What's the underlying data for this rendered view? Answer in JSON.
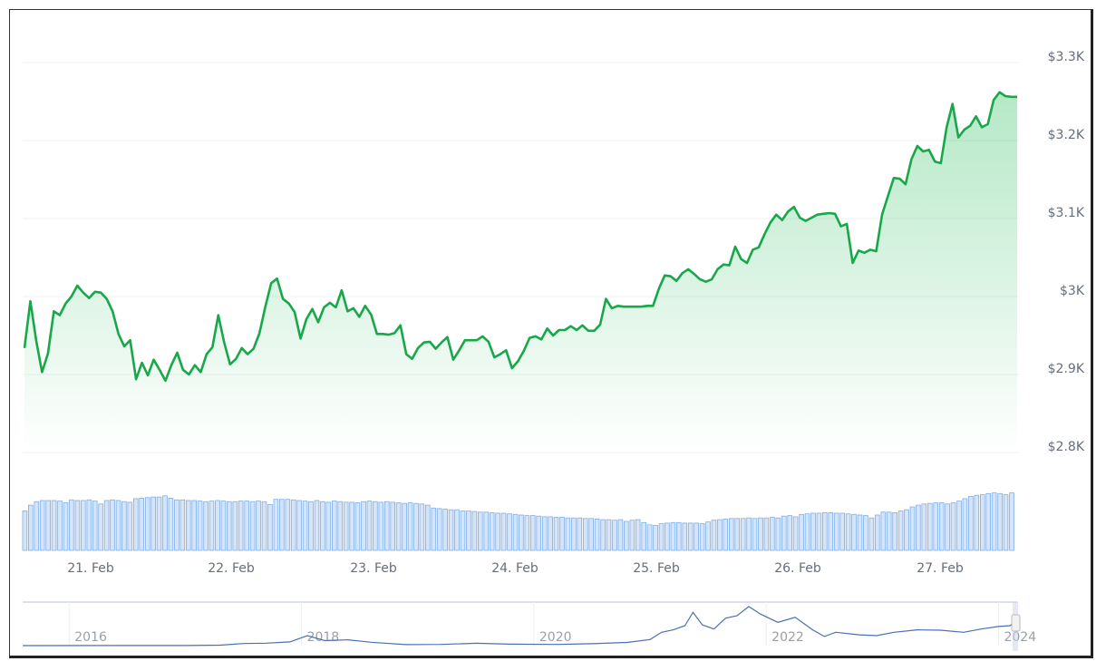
{
  "chart_data": {
    "type": "area",
    "title": "",
    "xlabel": "",
    "ylabel": "",
    "y_ticks": [
      "$2.8K",
      "$2.9K",
      "$3K",
      "$3.1K",
      "$3.2K",
      "$3.3K"
    ],
    "y_tick_values": [
      2800,
      2900,
      3000,
      3100,
      3200,
      3300
    ],
    "ylim": [
      2800,
      3300
    ],
    "x_ticks": [
      "21. Feb",
      "22. Feb",
      "23. Feb",
      "24. Feb",
      "25. Feb",
      "26. Feb",
      "27. Feb"
    ],
    "x_range": [
      "20. Feb ~11:00",
      "27. Feb ~13:00"
    ],
    "interval": "hourly",
    "grid": "horizontal",
    "line_color": "#18a84a",
    "fill_color": "#3cc36a",
    "price": [
      2934,
      2994,
      2943,
      2903,
      2927,
      2981,
      2976,
      2991,
      3000,
      3014,
      3005,
      2998,
      3006,
      3005,
      2997,
      2981,
      2952,
      2936,
      2944,
      2894,
      2915,
      2899,
      2919,
      2906,
      2892,
      2912,
      2928,
      2906,
      2900,
      2912,
      2903,
      2926,
      2935,
      2976,
      2941,
      2913,
      2920,
      2934,
      2926,
      2933,
      2953,
      2987,
      3017,
      3023,
      2997,
      2991,
      2980,
      2946,
      2971,
      2984,
      2967,
      2986,
      2992,
      2986,
      3008,
      2981,
      2985,
      2974,
      2988,
      2977,
      2952,
      2952,
      2951,
      2953,
      2963,
      2926,
      2920,
      2934,
      2941,
      2942,
      2933,
      2941,
      2948,
      2919,
      2931,
      2944,
      2944,
      2944,
      2949,
      2942,
      2922,
      2926,
      2931,
      2908,
      2917,
      2930,
      2947,
      2949,
      2945,
      2959,
      2950,
      2957,
      2957,
      2962,
      2957,
      2963,
      2956,
      2956,
      2964,
      2997,
      2985,
      2988,
      2987,
      2987,
      2987,
      2987,
      2988,
      2988,
      3010,
      3027,
      3026,
      3020,
      3030,
      3035,
      3029,
      3022,
      3019,
      3022,
      3035,
      3041,
      3040,
      3064,
      3048,
      3043,
      3060,
      3063,
      3080,
      3095,
      3105,
      3098,
      3109,
      3115,
      3101,
      3097,
      3101,
      3105,
      3106,
      3107,
      3106,
      3090,
      3093,
      3043,
      3059,
      3056,
      3060,
      3058,
      3105,
      3129,
      3152,
      3151,
      3144,
      3176,
      3193,
      3186,
      3188,
      3173,
      3171,
      3217,
      3247,
      3204,
      3214,
      3219,
      3231,
      3217,
      3221,
      3252,
      3262,
      3257,
      3256,
      3256
    ],
    "volume_relative_percent": [
      68,
      78,
      84,
      86,
      86,
      86,
      85,
      82,
      87,
      86,
      86,
      87,
      85,
      80,
      86,
      87,
      86,
      84,
      83,
      89,
      90,
      91,
      92,
      92,
      94,
      90,
      87,
      87,
      86,
      86,
      85,
      84,
      85,
      86,
      85,
      84,
      84,
      85,
      85,
      84,
      85,
      84,
      79,
      88,
      88,
      88,
      87,
      86,
      85,
      84,
      86,
      84,
      83,
      85,
      84,
      83,
      83,
      82,
      84,
      85,
      84,
      83,
      84,
      83,
      82,
      81,
      82,
      81,
      80,
      78,
      73,
      72,
      71,
      70,
      70,
      68,
      68,
      67,
      66,
      66,
      65,
      64,
      64,
      63,
      62,
      61,
      60,
      60,
      59,
      58,
      58,
      57,
      57,
      56,
      56,
      56,
      55,
      55,
      54,
      53,
      53,
      52,
      53,
      50,
      52,
      53,
      48,
      44,
      43,
      46,
      47,
      48,
      48,
      47,
      47,
      47,
      46,
      49,
      52,
      53,
      54,
      55,
      55,
      55,
      56,
      55,
      56,
      56,
      57,
      56,
      59,
      60,
      58,
      62,
      63,
      64,
      64,
      65,
      65,
      64,
      64,
      63,
      62,
      61,
      60,
      56,
      61,
      66,
      66,
      65,
      68,
      70,
      75,
      78,
      80,
      81,
      82,
      82,
      80,
      82,
      85,
      89,
      93,
      95,
      96,
      98,
      99,
      98,
      96,
      99
    ],
    "volume_color": "#7eaee8",
    "navigator": {
      "x_ticks": [
        "2016",
        "2018",
        "2020",
        "2022",
        "2024"
      ],
      "x_tick_values": [
        2016,
        2018,
        2020,
        2022,
        2024
      ],
      "xlim": [
        2015.6,
        2024.16
      ],
      "line_color": "#4a6fb5",
      "series": [
        [
          2015.6,
          1
        ],
        [
          2016.5,
          12
        ],
        [
          2017.0,
          10
        ],
        [
          2017.3,
          50
        ],
        [
          2017.5,
          250
        ],
        [
          2017.7,
          300
        ],
        [
          2017.9,
          450
        ],
        [
          2018.05,
          1200
        ],
        [
          2018.2,
          600
        ],
        [
          2018.4,
          700
        ],
        [
          2018.6,
          400
        ],
        [
          2018.9,
          120
        ],
        [
          2019.2,
          140
        ],
        [
          2019.5,
          280
        ],
        [
          2019.8,
          180
        ],
        [
          2020.2,
          140
        ],
        [
          2020.5,
          230
        ],
        [
          2020.8,
          380
        ],
        [
          2021.0,
          730
        ],
        [
          2021.1,
          1600
        ],
        [
          2021.2,
          1900
        ],
        [
          2021.3,
          2400
        ],
        [
          2021.37,
          4000
        ],
        [
          2021.45,
          2500
        ],
        [
          2021.55,
          2000
        ],
        [
          2021.65,
          3300
        ],
        [
          2021.75,
          3600
        ],
        [
          2021.85,
          4700
        ],
        [
          2021.95,
          3800
        ],
        [
          2022.1,
          2800
        ],
        [
          2022.25,
          3400
        ],
        [
          2022.4,
          1900
        ],
        [
          2022.5,
          1100
        ],
        [
          2022.6,
          1600
        ],
        [
          2022.8,
          1300
        ],
        [
          2022.95,
          1200
        ],
        [
          2023.1,
          1600
        ],
        [
          2023.3,
          1900
        ],
        [
          2023.5,
          1850
        ],
        [
          2023.7,
          1600
        ],
        [
          2023.85,
          2000
        ],
        [
          2024.0,
          2300
        ],
        [
          2024.1,
          2400
        ],
        [
          2024.16,
          3250
        ]
      ]
    }
  }
}
